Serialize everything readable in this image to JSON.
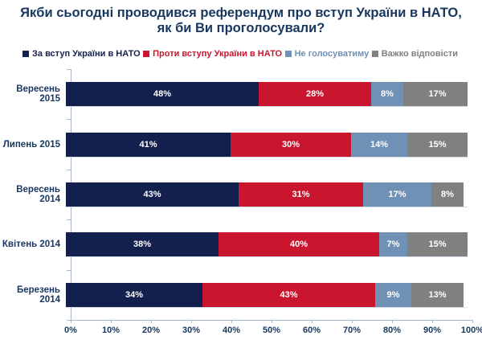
{
  "chart_data": {
    "type": "bar",
    "stacked": true,
    "orientation": "horizontal",
    "title": "Якби сьогодні проводився референдум про вступ України в НАТО, як би Ви проголосували?",
    "categories": [
      "Вересень 2015",
      "Липень 2015",
      "Вересень 2014",
      "Квітень 2014",
      "Березень 2014"
    ],
    "series": [
      {
        "name": "За вступ України в НАТО",
        "color": "#13204e",
        "values": [
          48,
          41,
          43,
          38,
          34
        ]
      },
      {
        "name": "Проти вступу України в НАТО",
        "color": "#c9162e",
        "values": [
          28,
          30,
          31,
          40,
          43
        ]
      },
      {
        "name": "Не голосуватиму",
        "color": "#6e91b5",
        "values": [
          8,
          14,
          17,
          7,
          9
        ]
      },
      {
        "name": "Важко відповісти",
        "color": "#808080",
        "values": [
          17,
          15,
          8,
          15,
          13
        ]
      }
    ],
    "xlim": [
      0,
      100
    ],
    "x_ticks": [
      "0%",
      "10%",
      "20%",
      "30%",
      "40%",
      "50%",
      "60%",
      "70%",
      "80%",
      "90%",
      "100%"
    ],
    "value_suffix": "%",
    "grid": false,
    "legend_position": "top",
    "colors": {
      "title_text": "#17375e",
      "axis_line": "#a8b8c6",
      "tick_text": "#17375e",
      "value_label_text": "#ffffff"
    }
  }
}
